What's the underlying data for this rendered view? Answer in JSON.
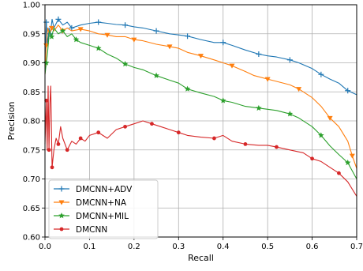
{
  "chart_data": {
    "type": "line",
    "title": "",
    "xlabel": "Recall",
    "ylabel": "Precision",
    "xlim": [
      0.0,
      0.7
    ],
    "ylim": [
      0.6,
      1.0
    ],
    "xticks": [
      "0.0",
      "0.1",
      "0.2",
      "0.3",
      "0.4",
      "0.5",
      "0.6",
      "0.7"
    ],
    "yticks": [
      "0.60",
      "0.65",
      "0.70",
      "0.75",
      "0.80",
      "0.85",
      "0.90",
      "0.95",
      "1.00"
    ],
    "grid": true,
    "legend_position": "lower-left",
    "series": [
      {
        "name": "DMCNN+ADV",
        "color": "#1f77b4",
        "marker": "plus",
        "points": [
          [
            0.0,
            0.9
          ],
          [
            0.003,
            0.97
          ],
          [
            0.006,
            0.93
          ],
          [
            0.009,
            0.96
          ],
          [
            0.012,
            0.95
          ],
          [
            0.016,
            0.975
          ],
          [
            0.02,
            0.96
          ],
          [
            0.03,
            0.975
          ],
          [
            0.04,
            0.965
          ],
          [
            0.05,
            0.97
          ],
          [
            0.06,
            0.96
          ],
          [
            0.08,
            0.965
          ],
          [
            0.1,
            0.968
          ],
          [
            0.12,
            0.97
          ],
          [
            0.14,
            0.968
          ],
          [
            0.16,
            0.966
          ],
          [
            0.18,
            0.965
          ],
          [
            0.2,
            0.962
          ],
          [
            0.22,
            0.96
          ],
          [
            0.25,
            0.955
          ],
          [
            0.28,
            0.95
          ],
          [
            0.3,
            0.948
          ],
          [
            0.32,
            0.946
          ],
          [
            0.35,
            0.94
          ],
          [
            0.38,
            0.935
          ],
          [
            0.4,
            0.935
          ],
          [
            0.42,
            0.93
          ],
          [
            0.45,
            0.922
          ],
          [
            0.48,
            0.915
          ],
          [
            0.5,
            0.912
          ],
          [
            0.52,
            0.91
          ],
          [
            0.55,
            0.905
          ],
          [
            0.57,
            0.9
          ],
          [
            0.6,
            0.89
          ],
          [
            0.62,
            0.88
          ],
          [
            0.64,
            0.872
          ],
          [
            0.66,
            0.865
          ],
          [
            0.68,
            0.852
          ],
          [
            0.7,
            0.845
          ]
        ]
      },
      {
        "name": "DMCNN+NA",
        "color": "#ff7f0e",
        "marker": "triangle-down",
        "points": [
          [
            0.0,
            0.88
          ],
          [
            0.003,
            0.93
          ],
          [
            0.006,
            0.96
          ],
          [
            0.01,
            0.95
          ],
          [
            0.015,
            0.96
          ],
          [
            0.02,
            0.955
          ],
          [
            0.03,
            0.965
          ],
          [
            0.04,
            0.955
          ],
          [
            0.05,
            0.96
          ],
          [
            0.06,
            0.955
          ],
          [
            0.08,
            0.958
          ],
          [
            0.1,
            0.955
          ],
          [
            0.12,
            0.95
          ],
          [
            0.14,
            0.948
          ],
          [
            0.16,
            0.945
          ],
          [
            0.18,
            0.945
          ],
          [
            0.2,
            0.94
          ],
          [
            0.22,
            0.938
          ],
          [
            0.25,
            0.932
          ],
          [
            0.28,
            0.928
          ],
          [
            0.3,
            0.925
          ],
          [
            0.32,
            0.918
          ],
          [
            0.35,
            0.912
          ],
          [
            0.38,
            0.905
          ],
          [
            0.4,
            0.9
          ],
          [
            0.42,
            0.895
          ],
          [
            0.45,
            0.885
          ],
          [
            0.47,
            0.878
          ],
          [
            0.5,
            0.872
          ],
          [
            0.52,
            0.868
          ],
          [
            0.55,
            0.862
          ],
          [
            0.57,
            0.855
          ],
          [
            0.6,
            0.84
          ],
          [
            0.62,
            0.825
          ],
          [
            0.64,
            0.805
          ],
          [
            0.66,
            0.79
          ],
          [
            0.68,
            0.765
          ],
          [
            0.69,
            0.74
          ],
          [
            0.7,
            0.718
          ]
        ]
      },
      {
        "name": "DMCNN+MIL",
        "color": "#2ca02c",
        "marker": "star",
        "points": [
          [
            0.0,
            0.88
          ],
          [
            0.003,
            0.9
          ],
          [
            0.006,
            0.92
          ],
          [
            0.01,
            0.955
          ],
          [
            0.015,
            0.945
          ],
          [
            0.02,
            0.96
          ],
          [
            0.03,
            0.95
          ],
          [
            0.04,
            0.955
          ],
          [
            0.05,
            0.945
          ],
          [
            0.06,
            0.95
          ],
          [
            0.07,
            0.94
          ],
          [
            0.08,
            0.935
          ],
          [
            0.1,
            0.93
          ],
          [
            0.12,
            0.925
          ],
          [
            0.14,
            0.915
          ],
          [
            0.16,
            0.908
          ],
          [
            0.18,
            0.898
          ],
          [
            0.2,
            0.892
          ],
          [
            0.22,
            0.888
          ],
          [
            0.25,
            0.878
          ],
          [
            0.28,
            0.87
          ],
          [
            0.3,
            0.865
          ],
          [
            0.32,
            0.855
          ],
          [
            0.35,
            0.848
          ],
          [
            0.38,
            0.842
          ],
          [
            0.4,
            0.835
          ],
          [
            0.42,
            0.832
          ],
          [
            0.45,
            0.825
          ],
          [
            0.48,
            0.822
          ],
          [
            0.5,
            0.82
          ],
          [
            0.52,
            0.818
          ],
          [
            0.55,
            0.812
          ],
          [
            0.57,
            0.805
          ],
          [
            0.6,
            0.79
          ],
          [
            0.62,
            0.775
          ],
          [
            0.64,
            0.757
          ],
          [
            0.66,
            0.742
          ],
          [
            0.68,
            0.728
          ],
          [
            0.7,
            0.7
          ]
        ]
      },
      {
        "name": "DMCNN",
        "color": "#d62728",
        "marker": "circle",
        "points": [
          [
            0.0,
            0.76
          ],
          [
            0.003,
            0.835
          ],
          [
            0.005,
            0.75
          ],
          [
            0.007,
            0.86
          ],
          [
            0.009,
            0.75
          ],
          [
            0.011,
            0.83
          ],
          [
            0.013,
            0.86
          ],
          [
            0.016,
            0.72
          ],
          [
            0.02,
            0.75
          ],
          [
            0.025,
            0.77
          ],
          [
            0.03,
            0.76
          ],
          [
            0.035,
            0.79
          ],
          [
            0.04,
            0.77
          ],
          [
            0.05,
            0.75
          ],
          [
            0.06,
            0.765
          ],
          [
            0.07,
            0.76
          ],
          [
            0.08,
            0.77
          ],
          [
            0.09,
            0.765
          ],
          [
            0.1,
            0.775
          ],
          [
            0.12,
            0.78
          ],
          [
            0.14,
            0.77
          ],
          [
            0.16,
            0.785
          ],
          [
            0.18,
            0.79
          ],
          [
            0.2,
            0.795
          ],
          [
            0.22,
            0.8
          ],
          [
            0.24,
            0.795
          ],
          [
            0.26,
            0.79
          ],
          [
            0.28,
            0.785
          ],
          [
            0.3,
            0.78
          ],
          [
            0.32,
            0.775
          ],
          [
            0.35,
            0.772
          ],
          [
            0.38,
            0.77
          ],
          [
            0.4,
            0.775
          ],
          [
            0.42,
            0.765
          ],
          [
            0.45,
            0.76
          ],
          [
            0.48,
            0.758
          ],
          [
            0.5,
            0.758
          ],
          [
            0.52,
            0.755
          ],
          [
            0.55,
            0.75
          ],
          [
            0.58,
            0.745
          ],
          [
            0.6,
            0.735
          ],
          [
            0.62,
            0.73
          ],
          [
            0.64,
            0.72
          ],
          [
            0.66,
            0.71
          ],
          [
            0.68,
            0.695
          ],
          [
            0.7,
            0.67
          ]
        ]
      }
    ]
  }
}
